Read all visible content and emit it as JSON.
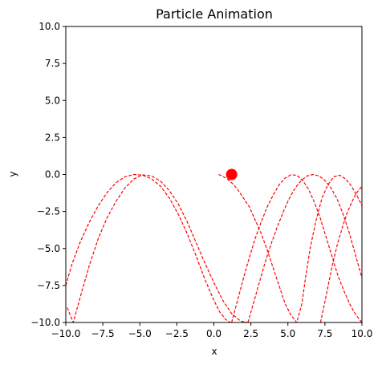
{
  "chart_data": {
    "type": "line",
    "title": "Particle Animation",
    "xlabel": "x",
    "ylabel": "y",
    "xlim": [
      -10,
      10
    ],
    "ylim": [
      -10,
      10
    ],
    "xticks": [
      -10,
      -7.5,
      -5,
      -2.5,
      0,
      2.5,
      5,
      7.5,
      10
    ],
    "xtick_labels": [
      "−10.0",
      "−7.5",
      "−5.0",
      "−2.5",
      "0.0",
      "2.5",
      "5.0",
      "7.5",
      "10.0"
    ],
    "yticks": [
      -10,
      -7.5,
      -5,
      -2.5,
      0,
      2.5,
      5,
      7.5,
      10
    ],
    "ytick_labels": [
      "−10.0",
      "−7.5",
      "−5.0",
      "−2.5",
      "0.0",
      "2.5",
      "5.0",
      "7.5",
      "10.0"
    ],
    "grid": false,
    "trajectory": {
      "color": "#ff0000",
      "style": "dashed",
      "x": [
        0.32,
        0.55,
        0.9,
        1.3,
        1.6,
        2.0,
        2.4,
        2.8,
        3.2,
        3.6,
        4.0,
        4.4,
        4.8,
        5.2,
        5.6,
        5.95,
        6.2,
        6.5,
        6.9,
        7.3,
        7.7,
        8.1,
        8.5,
        8.9,
        9.3,
        9.7,
        10.0
      ],
      "y": [
        0.0,
        -0.1,
        -0.3,
        -0.65,
        -1.0,
        -1.6,
        -2.2,
        -3.1,
        -4.0,
        -5.1,
        -6.3,
        -7.5,
        -8.7,
        -9.5,
        -10.0,
        -8.7,
        -6.9,
        -5.0,
        -3.1,
        -1.6,
        -0.7,
        -0.15,
        -0.05,
        -0.3,
        -0.8,
        -1.5,
        -2.1
      ]
    },
    "trajectories_faint": [
      {
        "x": [
          -10.0,
          -9.6,
          -9.0,
          -8.4,
          -7.8,
          -7.2,
          -6.6,
          -6.0,
          -5.4,
          -4.8,
          -4.2,
          -3.6,
          -3.0,
          -2.4,
          -1.8,
          -1.2,
          -0.6,
          0.0,
          0.4,
          0.8,
          1.1
        ],
        "y": [
          -7.5,
          -6.1,
          -4.5,
          -3.2,
          -2.1,
          -1.2,
          -0.55,
          -0.15,
          0.0,
          -0.05,
          -0.3,
          -0.8,
          -1.6,
          -2.7,
          -4.0,
          -5.5,
          -7.1,
          -8.5,
          -9.3,
          -9.8,
          -10.0
        ]
      },
      {
        "x": [
          -9.9,
          -9.5,
          -9.0,
          -8.4,
          -7.8,
          -7.2,
          -6.6,
          -6.0,
          -5.4,
          -4.8,
          -4.2,
          -3.6,
          -3.0,
          -2.4,
          -1.8,
          -1.2,
          -0.6,
          0.0,
          0.6,
          1.2,
          1.8,
          2.3
        ],
        "y": [
          -9.0,
          -10.0,
          -8.2,
          -6.1,
          -4.3,
          -2.9,
          -1.8,
          -0.9,
          -0.3,
          -0.03,
          -0.1,
          -0.45,
          -1.1,
          -2.0,
          -3.2,
          -4.6,
          -6.0,
          -7.3,
          -8.5,
          -9.4,
          -9.9,
          -10.0
        ]
      },
      {
        "x": [
          1.2,
          1.6,
          2.0,
          2.4,
          2.8,
          3.2,
          3.6,
          4.0,
          4.4,
          4.8,
          5.2,
          5.6,
          6.0,
          6.4,
          6.8,
          7.2,
          7.6,
          8.0,
          8.4,
          8.8,
          9.2,
          9.6,
          10.0
        ],
        "y": [
          -10.0,
          -8.5,
          -7.0,
          -5.6,
          -4.3,
          -3.2,
          -2.2,
          -1.4,
          -0.7,
          -0.25,
          -0.02,
          -0.05,
          -0.4,
          -1.0,
          -1.9,
          -3.0,
          -4.3,
          -5.6,
          -6.9,
          -7.9,
          -8.8,
          -9.5,
          -10.0
        ]
      },
      {
        "x": [
          2.3,
          2.7,
          3.1,
          3.5,
          3.9,
          4.3,
          4.7,
          5.1,
          5.5,
          5.9,
          6.3,
          6.7,
          7.1,
          7.5,
          7.9,
          8.3,
          8.7,
          9.1,
          9.5,
          10.0
        ],
        "y": [
          -10.0,
          -8.6,
          -7.2,
          -5.8,
          -4.6,
          -3.5,
          -2.5,
          -1.6,
          -0.9,
          -0.4,
          -0.1,
          0.0,
          -0.1,
          -0.4,
          -0.9,
          -1.6,
          -2.6,
          -3.8,
          -5.2,
          -7.0
        ]
      },
      {
        "x": [
          7.2,
          7.5,
          7.8,
          8.1,
          8.4,
          8.7,
          9.0,
          9.3,
          9.6,
          10.0
        ],
        "y": [
          -10.0,
          -8.6,
          -7.1,
          -5.7,
          -4.5,
          -3.5,
          -2.6,
          -1.9,
          -1.3,
          -0.8
        ]
      }
    ],
    "particle": {
      "x": 1.2,
      "y": 0.0,
      "color": "#ff0000"
    }
  }
}
